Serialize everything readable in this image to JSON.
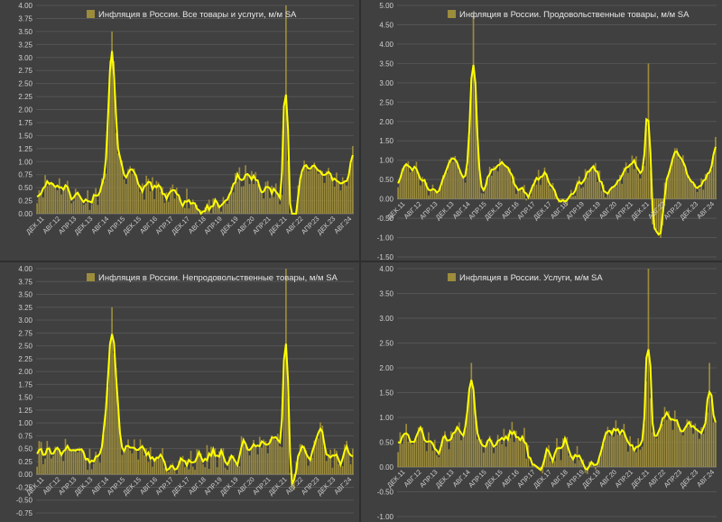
{
  "chart_data": [
    {
      "type": "bar+line",
      "title": "Инфляция в России. Все товары и услуги, м/м SA",
      "ylim": [
        0,
        4
      ],
      "yticks": [
        0,
        0.25,
        0.5,
        0.75,
        1,
        1.25,
        1.5,
        1.75,
        2,
        2.25,
        2.5,
        2.75,
        3,
        3.25,
        3.5,
        3.75,
        4
      ],
      "ytick_labels": [
        "0.00",
        "0.25",
        "0.50",
        "0.75",
        "1.00",
        "1.25",
        "1.50",
        "1.75",
        "2.00",
        "2.25",
        "2.50",
        "2.75",
        "3.00",
        "3.25",
        "3.50",
        "3.75",
        "4.00"
      ],
      "xtick_labels": [
        "ДЕК.11",
        "АВГ.12",
        "АПР.13",
        "ДЕК.13",
        "АВГ.14",
        "АПР.15",
        "ДЕК.15",
        "АВГ.16",
        "АПР.17",
        "ДЕК.17",
        "АВГ.18",
        "АПР.19",
        "ДЕК.19",
        "АВГ.20",
        "АПР.21",
        "ДЕК.21",
        "АВГ.22",
        "АПР.23",
        "ДЕК.23",
        "АВГ.24"
      ],
      "months_start": "2011-12",
      "grid": true,
      "legend": "top-left",
      "key_points": {
        "2015-01": 3.5,
        "2022-03": 4.0,
        "2022-06": -0.3,
        "2024-12": 1.3
      },
      "bar_color": "#9c8c3c",
      "line_color": "#ffff00"
    },
    {
      "type": "bar+line",
      "title": "Инфляция в России. Продовольственные товары, м/м SA",
      "ylim": [
        -1.5,
        5
      ],
      "yticks": [
        -1.5,
        -1,
        -0.5,
        0,
        0.5,
        1,
        1.5,
        2,
        2.5,
        3,
        3.5,
        4,
        4.5,
        5
      ],
      "ytick_labels": [
        "-1.50",
        "-1.00",
        "-0.50",
        "0.00",
        "0.50",
        "1.00",
        "1.50",
        "2.00",
        "2.50",
        "3.00",
        "3.50",
        "4.00",
        "4.50",
        "5.00"
      ],
      "xtick_labels": [
        "ДЕК.11",
        "АВГ.12",
        "АПР.13",
        "ДЕК.13",
        "АВГ.14",
        "АПР.15",
        "ДЕК.15",
        "АВГ.16",
        "АПР.17",
        "ДЕК.17",
        "АВГ.18",
        "АПР.19",
        "ДЕК.19",
        "АВГ.20",
        "АПР.21",
        "ДЕК.21",
        "АВГ.22",
        "АПР.23",
        "ДЕК.23",
        "АВГ.24"
      ],
      "months_start": "2011-12",
      "grid": true,
      "legend": "top-left",
      "key_points": {
        "2015-01": 4.8,
        "2022-03": 3.5,
        "2022-06": -0.8,
        "2024-12": 1.6
      },
      "bar_color": "#9c8c3c",
      "line_color": "#ffff00"
    },
    {
      "type": "bar+line",
      "title": "Инфляция в России. Непродовольственные товары, м/м SA",
      "ylim": [
        -0.75,
        4
      ],
      "yticks": [
        -0.75,
        -0.5,
        -0.25,
        0,
        0.25,
        0.5,
        0.75,
        1,
        1.25,
        1.5,
        1.75,
        2,
        2.25,
        2.5,
        2.75,
        3,
        3.25,
        3.5,
        3.75,
        4
      ],
      "ytick_labels": [
        "-0.75",
        "-0.50",
        "-0.25",
        "0.00",
        "0.25",
        "0.50",
        "0.75",
        "1.00",
        "1.25",
        "1.50",
        "1.75",
        "2.00",
        "2.25",
        "2.50",
        "2.75",
        "3.00",
        "3.25",
        "3.50",
        "3.75",
        "4.00"
      ],
      "xtick_labels": [
        "ДЕК.11",
        "АВГ.12",
        "АПР.13",
        "ДЕК.13",
        "АВГ.14",
        "АПР.15",
        "ДЕК.15",
        "АВГ.16",
        "АПР.17",
        "ДЕК.17",
        "АВГ.18",
        "АПР.19",
        "ДЕК.19",
        "АВГ.20",
        "АПР.21",
        "ДЕК.21",
        "АВГ.22",
        "АПР.23",
        "ДЕК.23",
        "АВГ.24"
      ],
      "months_start": "2011-12",
      "grid": true,
      "legend": "top-left",
      "key_points": {
        "2015-01": 3.25,
        "2022-03": 4.0,
        "2022-06": -0.25,
        "2024-12": 0.5
      },
      "bar_color": "#9c8c3c",
      "line_color": "#ffff00"
    },
    {
      "type": "bar+line",
      "title": "Инфляция в России. Услуги, м/м SA",
      "ylim": [
        -1,
        4
      ],
      "yticks": [
        -1,
        -0.5,
        0,
        0.5,
        1,
        1.5,
        2,
        2.5,
        3,
        3.5,
        4
      ],
      "ytick_labels": [
        "-1.00",
        "-0.50",
        "0.00",
        "0.50",
        "1.00",
        "1.50",
        "2.00",
        "2.50",
        "3.00",
        "3.50",
        "4.00"
      ],
      "xtick_labels": [
        "ДЕК.11",
        "АВГ.12",
        "АПР.13",
        "ДЕК.13",
        "АВГ.14",
        "АПР.15",
        "ДЕК.15",
        "АВГ.16",
        "АПР.17",
        "ДЕК.17",
        "АВГ.18",
        "АПР.19",
        "ДЕК.19",
        "АВГ.20",
        "АПР.21",
        "ДЕК.21",
        "АВГ.22",
        "АПР.23",
        "ДЕК.23",
        "АВГ.24"
      ],
      "months_start": "2011-12",
      "grid": true,
      "legend": "top-left",
      "key_points": {
        "2014-12": 2.1,
        "2022-03": 4.0,
        "2022-06": 0.6,
        "2024-09": 2.1
      },
      "bar_color": "#9c8c3c",
      "line_color": "#ffff00"
    }
  ]
}
